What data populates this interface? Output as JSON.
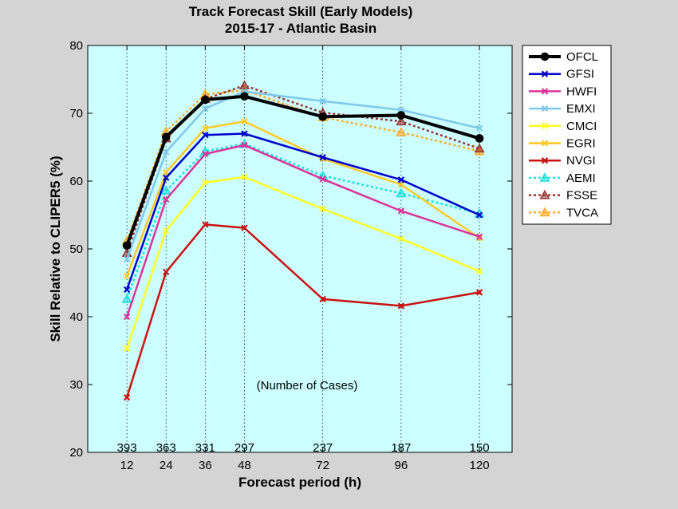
{
  "chart_data": {
    "type": "line",
    "title": "Track Forecast Skill (Early Models)",
    "subtitle": "2015-17 - Atlantic Basin",
    "xlabel": "Forecast period (h)",
    "ylabel": "Skill Relative to CLIPER5 (%)",
    "annotation": "(Number of Cases)",
    "x": [
      12,
      24,
      36,
      48,
      72,
      96,
      120
    ],
    "case_counts": [
      "393",
      "363",
      "331",
      "297",
      "237",
      "187",
      "150"
    ],
    "ylim": [
      20,
      80
    ],
    "yticks": [
      20,
      30,
      40,
      50,
      60,
      70,
      80
    ],
    "grid": "vertical dotted at forecast periods",
    "legend_position": "outside-right",
    "plot_background": "#ccffff",
    "series": [
      {
        "name": "OFCL",
        "color": "#000000",
        "marker": "circle",
        "dash": "solid",
        "width": 4,
        "values": [
          50.5,
          66.5,
          72.0,
          72.5,
          69.5,
          69.7,
          66.3
        ]
      },
      {
        "name": "GFSI",
        "color": "#0000cc",
        "marker": "x",
        "dash": "solid",
        "width": 2.5,
        "values": [
          44.0,
          60.5,
          66.8,
          67.0,
          63.5,
          60.2,
          55.0
        ]
      },
      {
        "name": "HWFI",
        "color": "#dd3399",
        "marker": "x",
        "dash": "solid",
        "width": 2.5,
        "values": [
          40.0,
          57.3,
          64.0,
          65.3,
          60.3,
          55.6,
          51.8
        ]
      },
      {
        "name": "EMXI",
        "color": "#7fc8ea",
        "marker": "x",
        "dash": "solid",
        "width": 2.5,
        "values": [
          48.5,
          64.3,
          70.7,
          73.2,
          71.8,
          70.5,
          67.8
        ]
      },
      {
        "name": "CMCI",
        "color": "#ffff22",
        "marker": "x",
        "dash": "solid",
        "width": 2.5,
        "values": [
          35.3,
          52.7,
          59.8,
          60.6,
          55.9,
          51.5,
          46.7
        ]
      },
      {
        "name": "EGRI",
        "color": "#ffc823",
        "marker": "x",
        "dash": "solid",
        "width": 2.5,
        "values": [
          46.0,
          61.3,
          67.8,
          68.8,
          63.3,
          59.5,
          51.6
        ]
      },
      {
        "name": "NVGI",
        "color": "#cc1111",
        "marker": "x",
        "dash": "solid",
        "width": 2.5,
        "values": [
          28.1,
          46.6,
          53.6,
          53.1,
          42.6,
          41.6,
          43.6
        ]
      },
      {
        "name": "AEMI",
        "color": "#22dddd",
        "marker": "triangle",
        "dash": "dotted",
        "width": 2.5,
        "values": [
          42.6,
          58.6,
          64.4,
          65.5,
          60.8,
          58.2,
          55.2
        ]
      },
      {
        "name": "FSSE",
        "color": "#993333",
        "marker": "triangle",
        "dash": "dotted",
        "width": 2.5,
        "values": [
          49.4,
          66.3,
          72.1,
          74.1,
          70.1,
          68.8,
          64.8
        ]
      },
      {
        "name": "TVCA",
        "color": "#ffaa22",
        "marker": "triangle",
        "dash": "dotted",
        "width": 2.5,
        "values": [
          51.2,
          67.3,
          72.8,
          73.4,
          69.4,
          67.2,
          64.4
        ]
      }
    ]
  }
}
